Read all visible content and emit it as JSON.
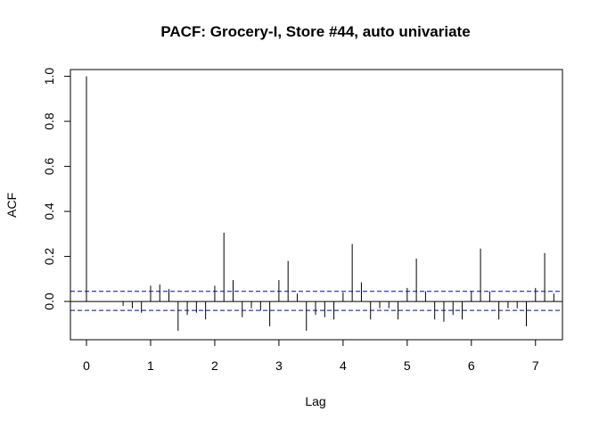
{
  "chart_data": {
    "type": "bar",
    "title": "PACF: Grocery-I, Store #44, auto univariate",
    "xlabel": "Lag",
    "ylabel": "ACF",
    "xlim": [
      -0.25,
      7.42
    ],
    "ylim": [
      -0.17,
      1.03
    ],
    "x_ticks": [
      0,
      1,
      2,
      3,
      4,
      5,
      6,
      7
    ],
    "y_ticks": [
      0.0,
      0.2,
      0.4,
      0.6,
      0.8,
      1.0
    ],
    "y_tick_labels": [
      "0.0",
      "0.2",
      "0.4",
      "0.6",
      "0.8",
      "1.0"
    ],
    "confidence_bounds": [
      0.045,
      -0.04
    ],
    "grid": false,
    "lag_step": 0.1428571,
    "values": [
      1.0,
      0.0,
      0.0,
      0.0,
      -0.02,
      -0.03,
      -0.05,
      0.07,
      0.075,
      0.055,
      -0.13,
      -0.06,
      -0.05,
      -0.08,
      0.07,
      0.305,
      0.095,
      -0.07,
      -0.03,
      -0.04,
      -0.11,
      0.095,
      0.18,
      0.035,
      -0.13,
      -0.06,
      -0.07,
      -0.08,
      0.04,
      0.255,
      0.085,
      -0.08,
      -0.03,
      -0.03,
      -0.08,
      0.06,
      0.19,
      0.045,
      -0.08,
      -0.09,
      -0.06,
      -0.08,
      0.045,
      0.235,
      0.045,
      -0.08,
      -0.03,
      -0.03,
      -0.11,
      0.06,
      0.215,
      0.035
    ],
    "colors": {
      "bars": "#000000",
      "bounds": "#0000cc",
      "zero_line": "#000000"
    }
  }
}
